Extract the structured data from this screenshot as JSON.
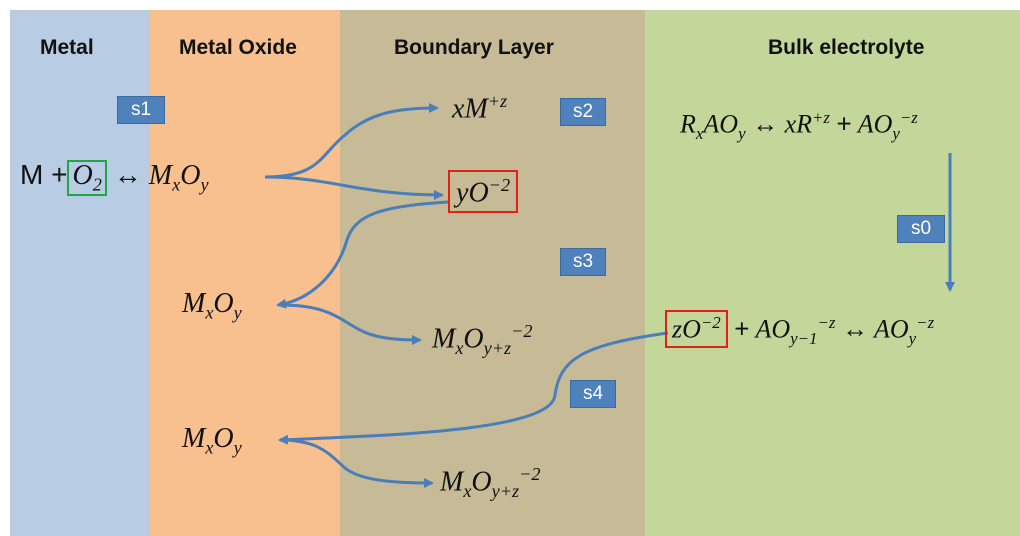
{
  "headers": {
    "metal": "Metal",
    "metal_oxide": "Metal Oxide",
    "boundary_layer": "Boundary Layer",
    "bulk_electrolyte": "Bulk electrolyte"
  },
  "tags": {
    "s0": "s0",
    "s1": "s1",
    "s2": "s2",
    "s3": "s3",
    "s4": "s4"
  },
  "equations": {
    "metal_reaction": {
      "lhs": "M +",
      "o2_base": "O",
      "o2_sub": "2",
      "arrow": "↔",
      "mxoy": {
        "m": "M",
        "x": "x",
        "o": "O",
        "y": "y"
      }
    },
    "xm": {
      "coef": "x",
      "base": "M",
      "sup": "+z"
    },
    "yo": {
      "coef": "y",
      "base": "O",
      "sup": "−2"
    },
    "mxoy_2": {
      "m": "M",
      "x": "x",
      "o": "O",
      "y": "y"
    },
    "mxoy_3": {
      "m": "M",
      "x": "x",
      "o": "O",
      "y": "y"
    },
    "mxoyz_1": {
      "m": "M",
      "x": "x",
      "o": "O",
      "sub": "y+z",
      "sup": "−2"
    },
    "mxoyz_2": {
      "m": "M",
      "x": "x",
      "o": "O",
      "sub": "y+z",
      "sup": "−2"
    },
    "bulk_top": {
      "r": "R",
      "x": "x",
      "a": "AO",
      "y": "y",
      "arrow": "↔",
      "xr": "xR",
      "rsup": "+z",
      "plus": "+",
      "ao2": "AO",
      "y2": "y",
      "ao2sup": "−z"
    },
    "bulk_mid": {
      "zo": "zO",
      "zosup": "−2",
      "plus": "+",
      "ao": "AO",
      "aosub": "y−1",
      "aosup": "−z",
      "arrow": "↔",
      "ao2": "AO",
      "ao2sub": "y",
      "ao2sup": "−z"
    }
  },
  "colors": {
    "metal_band": "#b8cce4",
    "oxide_band": "#f8bf8f",
    "boundary_band": "#c6bb96",
    "bulk_band": "#c4d79b",
    "arrow": "#4a7ebb",
    "tag": "#4f81bd",
    "highlight_red": "#e0201a",
    "highlight_green": "#22a545"
  }
}
